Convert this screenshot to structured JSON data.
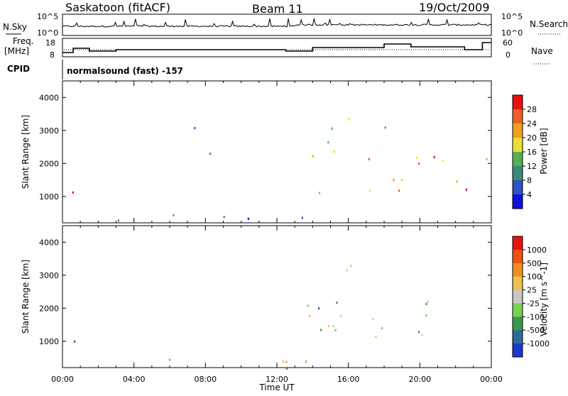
{
  "header": {
    "station": "Saskatoon (fitACF)",
    "beam": "Beam 11",
    "date": "19/Oct/2009"
  },
  "noise_panel": {
    "left_label": "N.Sky",
    "left_ticks": [
      "10^5",
      "10^0"
    ],
    "right_ticks": [
      "10^5",
      "10^0"
    ],
    "right_label": "N.Search"
  },
  "freq_panel": {
    "label_line1": "Freq.",
    "label_line2": "[MHz]",
    "left_ticks": [
      "18",
      "8"
    ],
    "right_ticks": [
      "60",
      "0"
    ],
    "right_label": "Nave"
  },
  "cpid": {
    "label": "CPID",
    "value": "normalsound (fast) -157"
  },
  "chart_data": [
    {
      "type": "heatmap",
      "name": "power",
      "ylabel": "Slant Range [km]",
      "yticks": [
        1000,
        2000,
        3000,
        4000
      ],
      "ylim": [
        200,
        4500
      ],
      "xlim_hours": [
        0,
        24
      ],
      "colorbar_label": "Power [dB]",
      "colorbar_ticks": [
        "28",
        "24",
        "20",
        "16",
        "12",
        "8",
        "4"
      ],
      "colors": [
        "#1010e0",
        "#2a55c0",
        "#3a8a78",
        "#55b050",
        "#e8e030",
        "#f0a020",
        "#f06020",
        "#e81010"
      ],
      "echo_regions": [
        {
          "t0": 0.3,
          "t1": 1.0,
          "r0": 600,
          "r1": 2500,
          "level": 0.7
        },
        {
          "t0": 0.3,
          "t1": 14.0,
          "r0": 200,
          "r1": 500,
          "level": 0.25
        },
        {
          "t0": 13.5,
          "t1": 15.2,
          "r0": 800,
          "r1": 3300,
          "level": 0.6
        },
        {
          "t0": 15.0,
          "t1": 24.0,
          "r0": 1100,
          "r1": 2300,
          "level": 0.75
        },
        {
          "t0": 15.5,
          "t1": 19.0,
          "r0": 2900,
          "r1": 3500,
          "level": 0.7
        },
        {
          "t0": 7.0,
          "t1": 8.3,
          "r0": 2000,
          "r1": 3500,
          "level": 0.2
        }
      ]
    },
    {
      "type": "heatmap",
      "name": "velocity",
      "ylabel": "Slant Range [km]",
      "yticks": [
        1000,
        2000,
        3000,
        4000
      ],
      "ylim": [
        200,
        4500
      ],
      "xlim_hours": [
        0,
        24
      ],
      "colorbar_label": "Velocity [m s^-1]",
      "colorbar_ticks": [
        "1000",
        "500",
        "100",
        "25",
        "-25",
        "-100",
        "-500",
        "-1000"
      ],
      "colors": [
        "#1a3ad0",
        "#2f6a9a",
        "#3a9a4a",
        "#7ad050",
        "#c8c8c0",
        "#f0c050",
        "#f09020",
        "#f05010",
        "#e81010"
      ],
      "echo_regions": [
        {
          "t0": 0.3,
          "t1": 1.0,
          "r0": 600,
          "r1": 2500,
          "level": 0.45
        },
        {
          "t0": 0.3,
          "t1": 14.0,
          "r0": 200,
          "r1": 500,
          "level": 0.55
        },
        {
          "t0": 13.5,
          "t1": 15.2,
          "r0": 800,
          "r1": 3300,
          "level": 0.45
        },
        {
          "t0": 15.0,
          "t1": 24.0,
          "r0": 1100,
          "r1": 2300,
          "level": 0.45
        },
        {
          "t0": 15.5,
          "t1": 19.0,
          "r0": 2900,
          "r1": 3500,
          "level": 0.45
        }
      ]
    }
  ],
  "time_axis": {
    "ticks": [
      "00:00",
      "04:00",
      "08:00",
      "12:00",
      "16:00",
      "20:00",
      "00:00"
    ],
    "label": "Time UT"
  }
}
